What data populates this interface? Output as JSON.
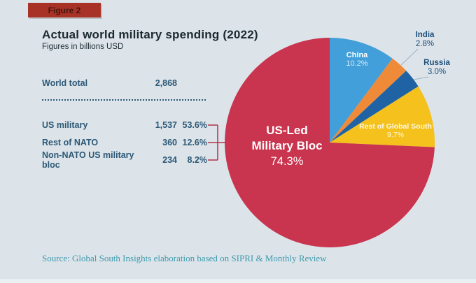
{
  "figure_label": "Figure 2",
  "header": {
    "title": "Actual world military spending (2022)",
    "subtitle": "Figures in billions USD"
  },
  "table": {
    "world_total": {
      "label": "World total",
      "value": "2,868"
    },
    "rows": [
      {
        "label": "US military",
        "value": "1,537",
        "pct": "53.6%"
      },
      {
        "label": "Rest of NATO",
        "value": "360",
        "pct": "12.6%"
      },
      {
        "label": "Non-NATO US military bloc",
        "value": "234",
        "pct": "8.2%"
      }
    ]
  },
  "source": "Source: Global South Insights elaboration based on SIPRI & Monthly Review",
  "chart_data": {
    "type": "pie",
    "title": "Actual world military spending (2022)",
    "units": "billions USD",
    "world_total": 2868,
    "start_angle_deg": 0,
    "direction": "clockwise",
    "slices": [
      {
        "label": "China",
        "pct": 10.2,
        "pct_text": "10.2%",
        "color": "#429fd9",
        "label_placement": "inside"
      },
      {
        "label": "India",
        "pct": 2.8,
        "pct_text": "2.8%",
        "color": "#ee8a38",
        "label_placement": "outside-callout"
      },
      {
        "label": "Russia",
        "pct": 3.0,
        "pct_text": "3.0%",
        "color": "#1f63a4",
        "label_placement": "outside-callout"
      },
      {
        "label": "Rest of Global South",
        "pct": 9.7,
        "pct_text": "9.7%",
        "color": "#f4c11d",
        "label_placement": "inside"
      },
      {
        "label": "US-Led Military Bloc",
        "pct": 74.3,
        "pct_text": "74.3%",
        "color": "#c9344e",
        "label_placement": "inside"
      }
    ],
    "center_label": {
      "line1": "US-Led",
      "line2": "Military Bloc",
      "pct": "74.3%"
    },
    "bracket_note": "US military + Rest of NATO + Non-NATO US military bloc form the US-Led Military Bloc slice",
    "legend_position": "none"
  },
  "theme": {
    "background": "#dce4ea",
    "badge_bg": "#a93226",
    "badge_text": "#43150e",
    "heading_text": "#1c2930",
    "table_text": "#2d5876",
    "source_text": "#3f9aad",
    "bracket": "#b13148",
    "callout_line": "#9db3c2",
    "slice_label_light": "#ffffff",
    "slice_label_dark": "#1d4e79"
  }
}
